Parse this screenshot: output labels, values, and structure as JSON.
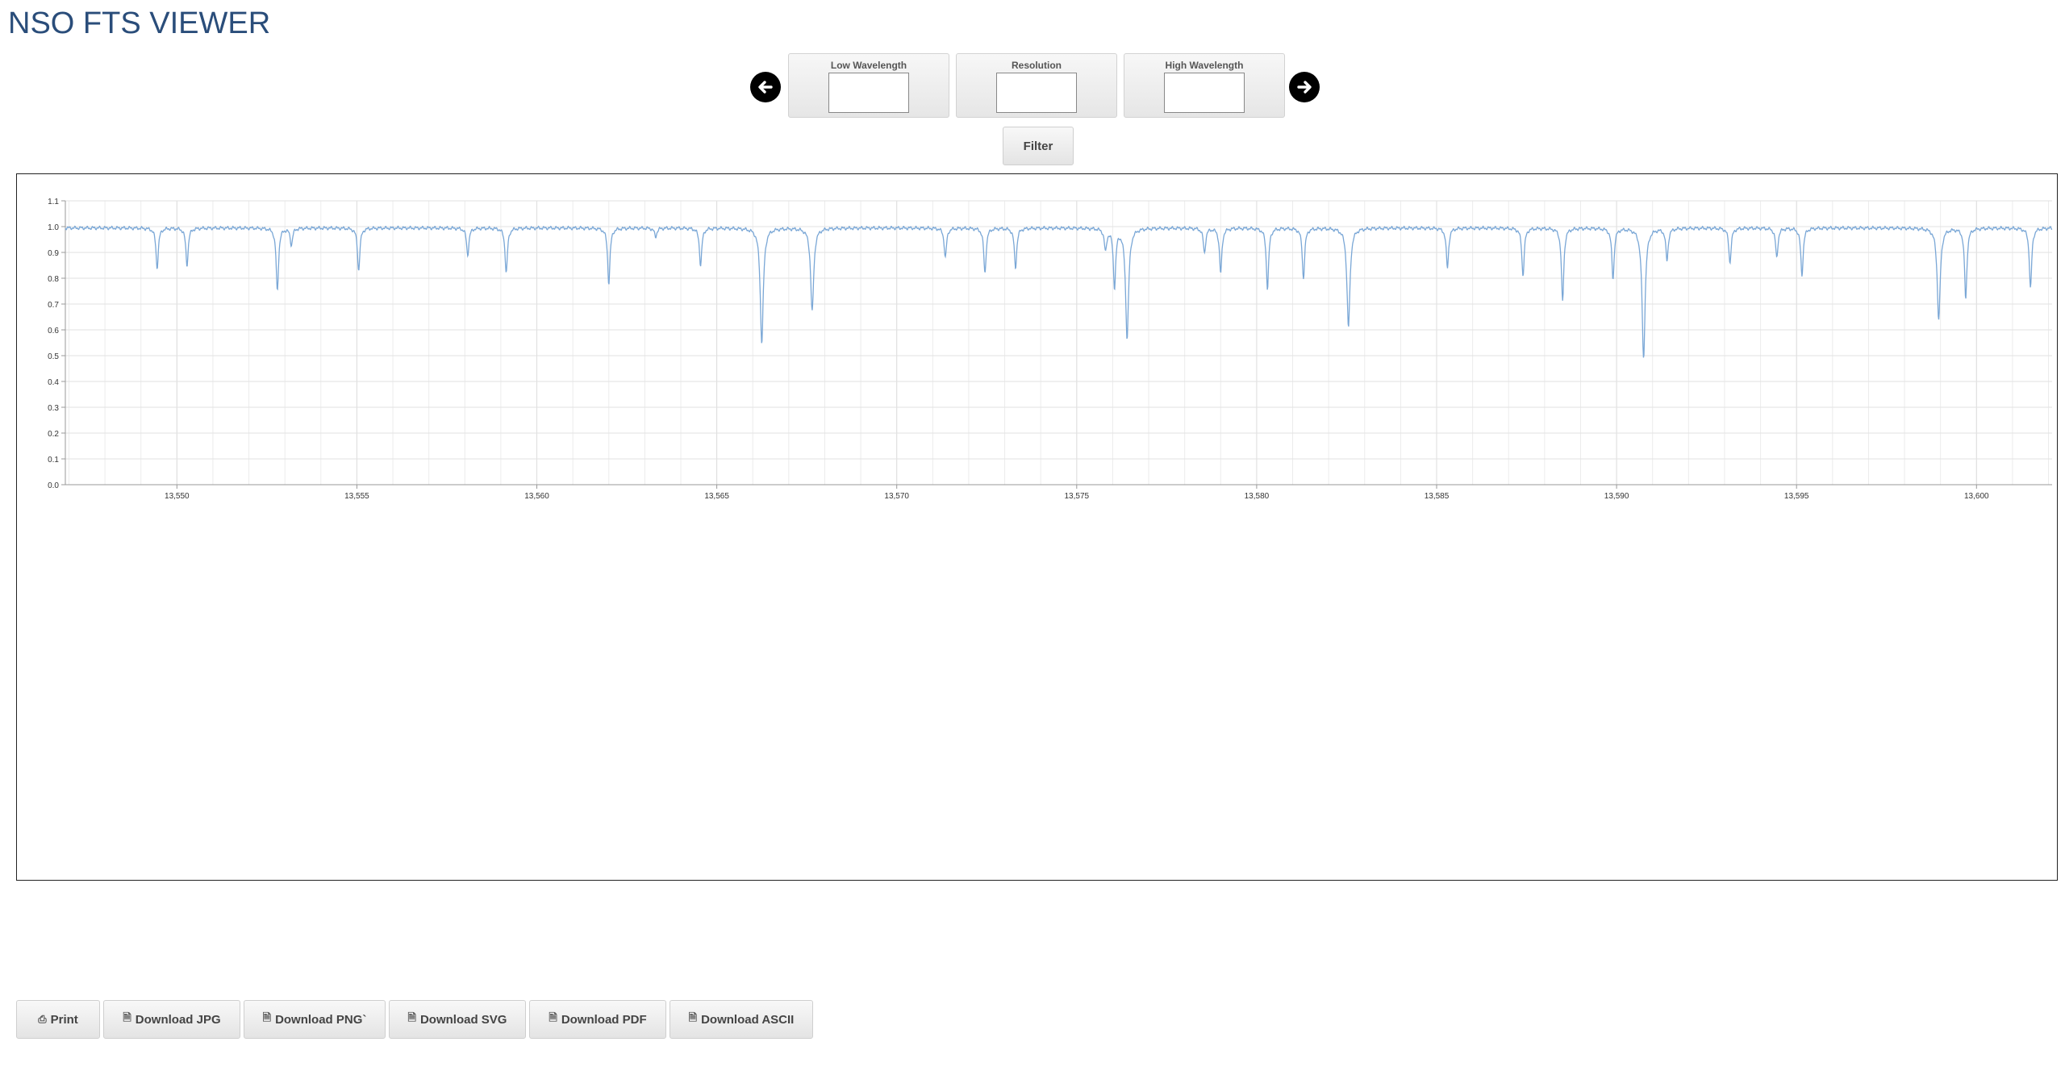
{
  "app": {
    "title": "NSO FTS VIEWER"
  },
  "controls": {
    "prev_icon": "arrow-left-circle-icon",
    "next_icon": "arrow-right-circle-icon",
    "low_wavelength": {
      "label": "Low Wavelength",
      "value": ""
    },
    "resolution": {
      "label": "Resolution",
      "value": ""
    },
    "high_wavelength": {
      "label": "High Wavelength",
      "value": ""
    },
    "filter_label": "Filter"
  },
  "toolbar": {
    "print_label": "Print",
    "jpg_label": "Download JPG",
    "png_label": "Download PNG`",
    "svg_label": "Download SVG",
    "pdf_label": "Download PDF",
    "ascii_label": "Download ASCII"
  },
  "chart_data": {
    "type": "line",
    "title": "",
    "xlabel": "",
    "ylabel": "",
    "xlim": [
      13546.9,
      13602.1
    ],
    "ylim": [
      0,
      1.1
    ],
    "grid": true,
    "line_color": "#7aa7d6",
    "x_ticks": [
      13550,
      13555,
      13560,
      13565,
      13570,
      13575,
      13580,
      13585,
      13590,
      13595,
      13600
    ],
    "x_tick_labels": [
      "13,550",
      "13,555",
      "13,560",
      "13,565",
      "13,570",
      "13,575",
      "13,580",
      "13,585",
      "13,590",
      "13,595",
      "13,600"
    ],
    "y_ticks": [
      0,
      0.1,
      0.2,
      0.3,
      0.4,
      0.5,
      0.6,
      0.7,
      0.8,
      0.9,
      1.0,
      1.1
    ],
    "y_tick_labels": [
      "0.0",
      "0.1",
      "0.2",
      "0.3",
      "0.4",
      "0.5",
      "0.6",
      "0.7",
      "0.8",
      "0.9",
      "1.0",
      "1.1"
    ],
    "continuum": 0.995,
    "absorption_lines": [
      {
        "x": 13549.45,
        "y": 0.84
      },
      {
        "x": 13550.28,
        "y": 0.85
      },
      {
        "x": 13552.79,
        "y": 0.75
      },
      {
        "x": 13553.18,
        "y": 0.93
      },
      {
        "x": 13555.05,
        "y": 0.83
      },
      {
        "x": 13558.08,
        "y": 0.89
      },
      {
        "x": 13559.15,
        "y": 0.82
      },
      {
        "x": 13562.0,
        "y": 0.78
      },
      {
        "x": 13563.3,
        "y": 0.96
      },
      {
        "x": 13564.55,
        "y": 0.85
      },
      {
        "x": 13566.25,
        "y": 0.55
      },
      {
        "x": 13567.65,
        "y": 0.67
      },
      {
        "x": 13571.35,
        "y": 0.88
      },
      {
        "x": 13572.45,
        "y": 0.82
      },
      {
        "x": 13573.3,
        "y": 0.84
      },
      {
        "x": 13575.8,
        "y": 0.91
      },
      {
        "x": 13576.05,
        "y": 0.77
      },
      {
        "x": 13576.4,
        "y": 0.57
      },
      {
        "x": 13578.55,
        "y": 0.9
      },
      {
        "x": 13579.0,
        "y": 0.82
      },
      {
        "x": 13580.3,
        "y": 0.76
      },
      {
        "x": 13581.3,
        "y": 0.8
      },
      {
        "x": 13582.55,
        "y": 0.61
      },
      {
        "x": 13585.3,
        "y": 0.84
      },
      {
        "x": 13587.4,
        "y": 0.81
      },
      {
        "x": 13588.5,
        "y": 0.71
      },
      {
        "x": 13589.9,
        "y": 0.8
      },
      {
        "x": 13590.75,
        "y": 0.49
      },
      {
        "x": 13591.4,
        "y": 0.87
      },
      {
        "x": 13593.15,
        "y": 0.86
      },
      {
        "x": 13594.45,
        "y": 0.88
      },
      {
        "x": 13595.15,
        "y": 0.81
      },
      {
        "x": 13598.95,
        "y": 0.64
      },
      {
        "x": 13599.7,
        "y": 0.72
      },
      {
        "x": 13601.5,
        "y": 0.76
      }
    ]
  }
}
